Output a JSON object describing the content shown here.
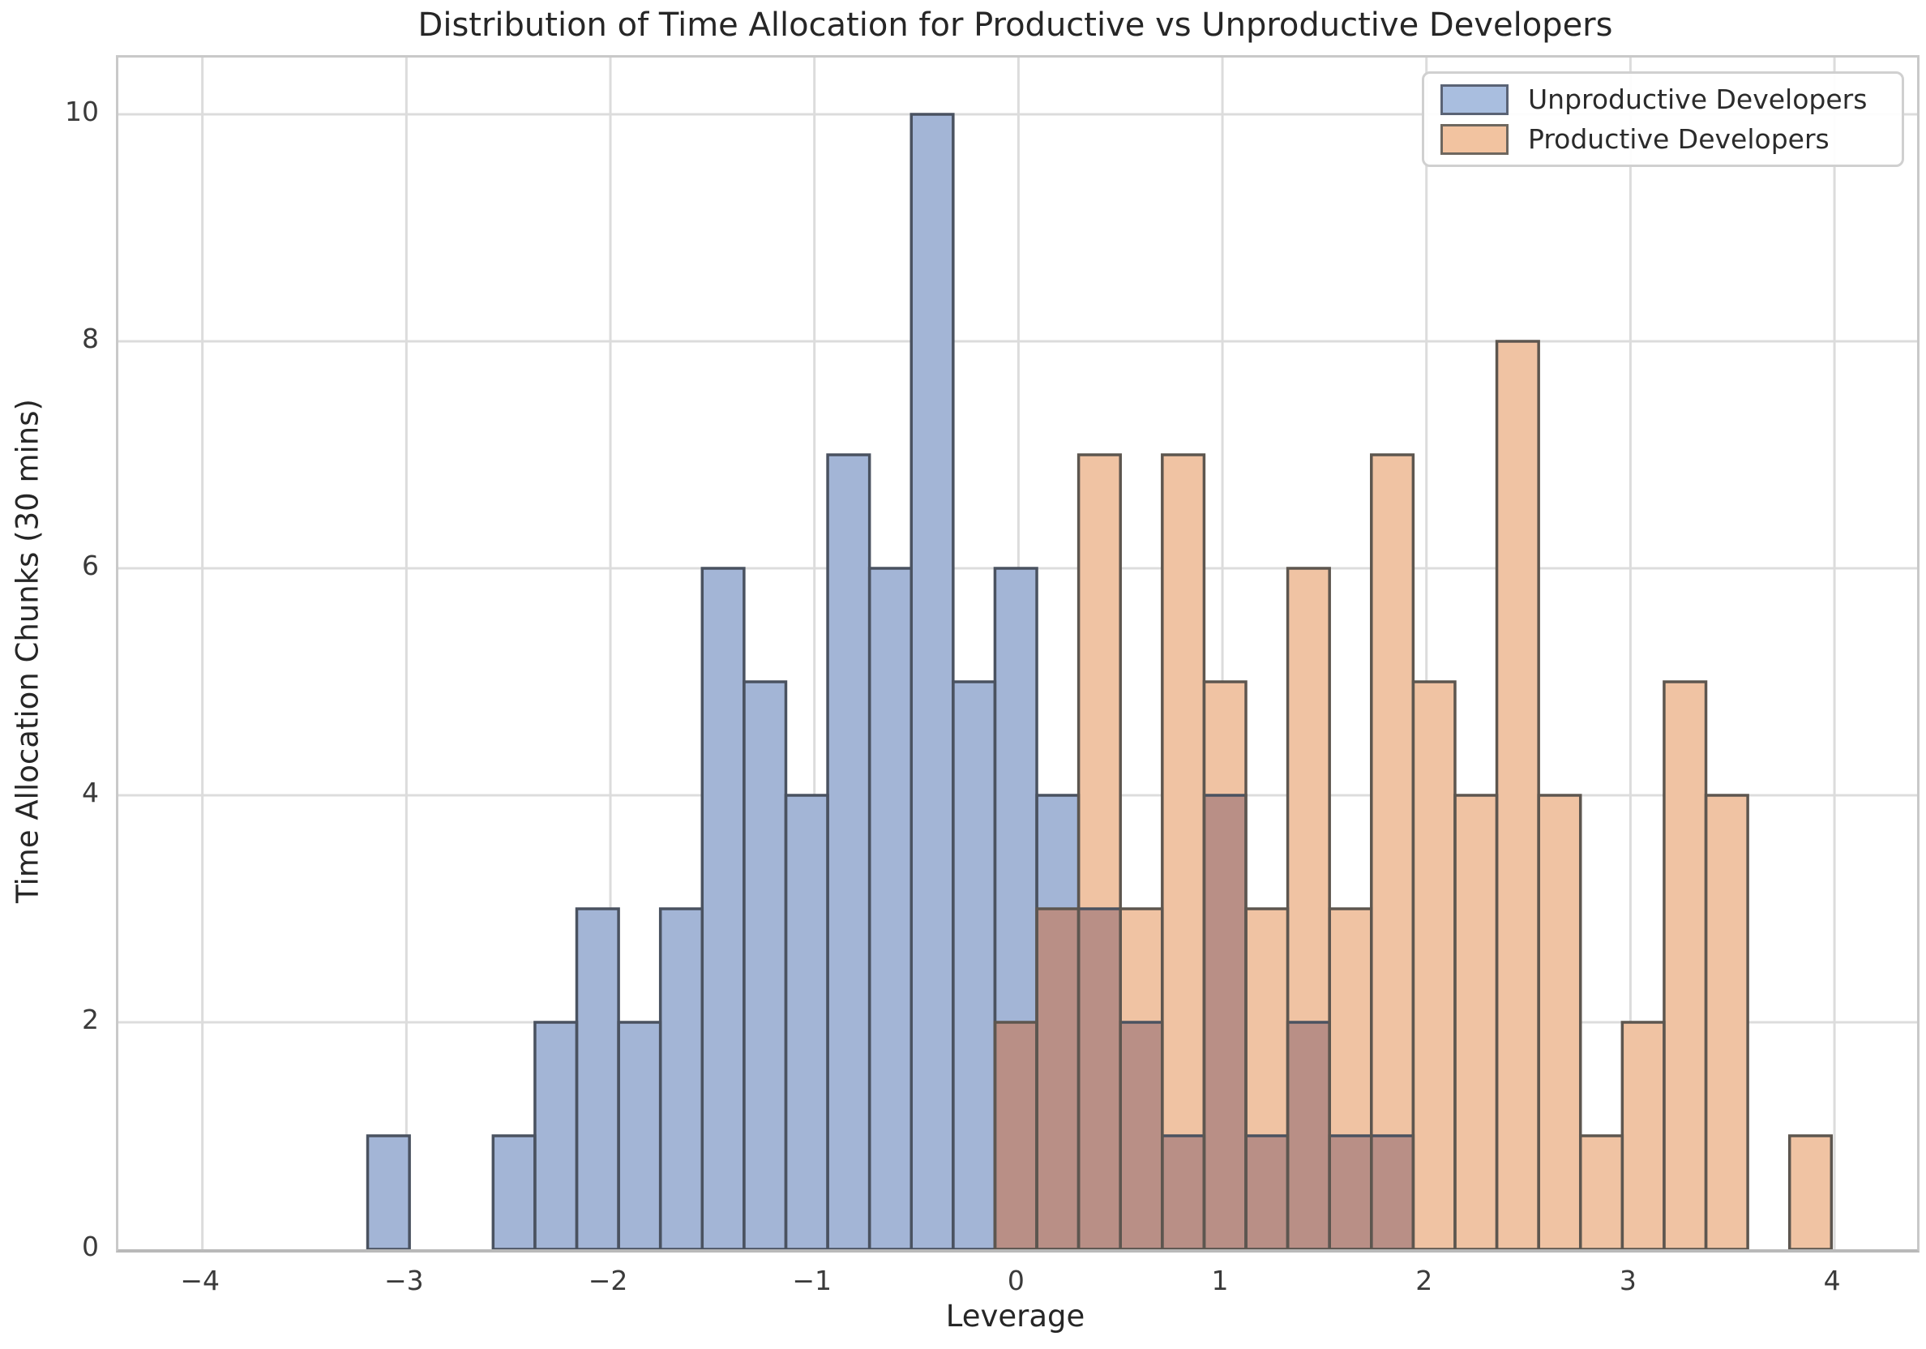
{
  "chart_data": {
    "type": "bar",
    "subtype": "overlapping-step-histograms",
    "title": "Distribution of Time Allocation for Productive vs Unproductive Developers",
    "xlabel": "Leverage",
    "ylabel": "Time Allocation Chunks (30 mins)",
    "xlim": [
      -4.412,
      4.405
    ],
    "ylim": [
      0,
      10.5
    ],
    "xtick_values": [
      -4,
      -3,
      -2,
      -1,
      0,
      1,
      2,
      3,
      4
    ],
    "xtick_labels": [
      "−4",
      "−3",
      "−2",
      "−1",
      "0",
      "1",
      "2",
      "3",
      "4"
    ],
    "ytick_values": [
      0,
      2,
      4,
      6,
      8,
      10
    ],
    "ytick_labels": [
      "0",
      "2",
      "4",
      "6",
      "8",
      "10"
    ],
    "grid": true,
    "legend_position": "upper right",
    "bin_width": 0.205,
    "series": [
      {
        "name": "Unproductive Developers",
        "bin_start": -3.19,
        "fill": "#a3b5d6",
        "edge": "#4a5260",
        "values": [
          1,
          0,
          0,
          1,
          2,
          3,
          2,
          3,
          6,
          5,
          4,
          7,
          6,
          10,
          5,
          6,
          4,
          3,
          2,
          1,
          4,
          1,
          2,
          1,
          1
        ]
      },
      {
        "name": "Productive Developers",
        "bin_start": -0.115,
        "fill": "#f0c3a3",
        "edge": "#5d564f",
        "values": [
          2,
          3,
          7,
          3,
          7,
          5,
          3,
          6,
          3,
          7,
          5,
          4,
          8,
          4,
          1,
          2,
          5,
          4,
          0,
          1
        ]
      }
    ],
    "overlap_fill": "#b98f86"
  },
  "legend": {
    "items": [
      {
        "label": "Unproductive Developers",
        "swatch_fill": "#a9bedf",
        "swatch_edge": "#5a6375"
      },
      {
        "label": "Productive Developers",
        "swatch_fill": "#f2c3a0",
        "swatch_edge": "#6e675f"
      }
    ]
  },
  "colors": {
    "grid": "#dcdcdc",
    "spine": "#c9c9c9",
    "spine_bottom": "#b9b9b9",
    "tick_text": "#3a3a3a",
    "title_text": "#262626",
    "background": "#ffffff"
  }
}
